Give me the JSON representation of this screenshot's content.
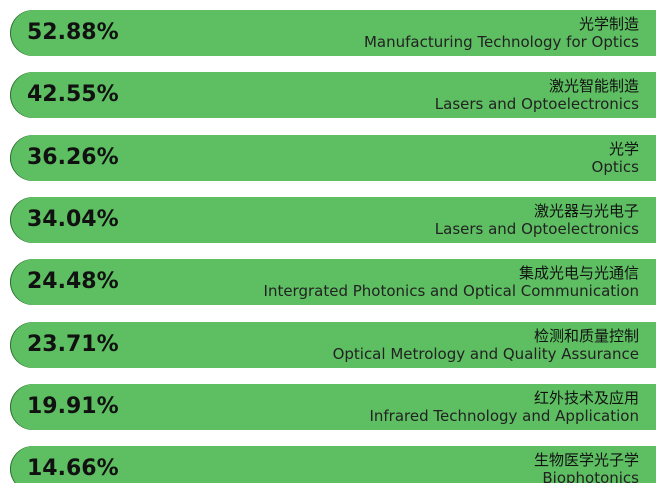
{
  "items": [
    {
      "percent": "52.88%",
      "name_zh": "光学制造",
      "name_en": "Manufacturing Technology for Optics"
    },
    {
      "percent": "42.55%",
      "name_zh": "激光智能制造",
      "name_en": "Lasers and Optoelectronics"
    },
    {
      "percent": "36.26%",
      "name_zh": "光学",
      "name_en": "Optics"
    },
    {
      "percent": "34.04%",
      "name_zh": "激光器与光电子",
      "name_en": "Lasers and Optoelectronics"
    },
    {
      "percent": "24.48%",
      "name_zh": "集成光电与光通信",
      "name_en": "Intergrated Photonics and Optical Communication"
    },
    {
      "percent": "23.71%",
      "name_zh": "检测和质量控制",
      "name_en": "Optical Metrology and Quality Assurance"
    },
    {
      "percent": "19.91%",
      "name_zh": "红外技术及应用",
      "name_en": "Infrared Technology and Application"
    },
    {
      "percent": "14.66%",
      "name_zh": "生物医学光子学",
      "name_en": "Biophotonics"
    }
  ]
}
